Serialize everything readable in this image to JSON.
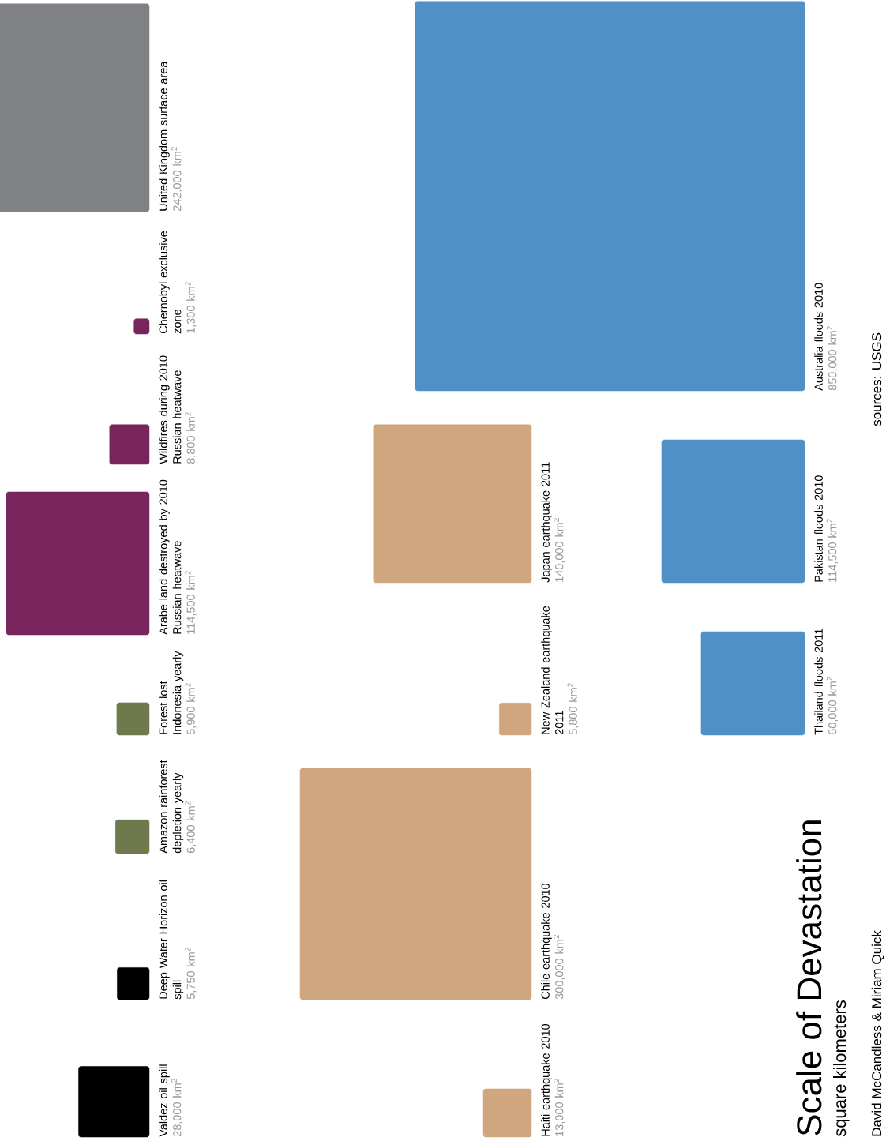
{
  "chart_data": {
    "type": "other",
    "title": "Scale of Devastation",
    "subtitle": "square kilometers",
    "categories": [
      "Valdez oil spill",
      "Deep Water Horizon oil spill",
      "Amazon rainforest depletion yearly",
      "Forest lost Indonesia yearly",
      "Arabe land destroyed by 2010 Russian heatwave",
      "Wildfires during 2010 Russian heatwave",
      "Chernobyl exclusive zone",
      "United Kingdom surface area",
      "Haiti earthquake 2010",
      "Chile earthquake 2010",
      "New Zealand earthquake 2011",
      "Japan earthquake 2011",
      "Thailand floods 2011",
      "Pakistan floods 2010",
      "Australia floods 2010"
    ],
    "values": [
      28000,
      5750,
      6400,
      5900,
      114500,
      8800,
      1300,
      242000,
      13000,
      300000,
      5800,
      140000,
      60000,
      114500,
      850000
    ],
    "value_labels": [
      "28,000 km$^{2}$",
      "5,750 km$^{2}$",
      "6,400 km$^{2}$",
      "5,900 km$^{2}$",
      "114,500 km$^{2}$",
      "8,800 km$^{2}$",
      "1,300 km$^{2}$",
      "242,000 km$^{2}$",
      "13,000 km$^{2}$",
      "300,000 km$^{2}$",
      "5,800 km$^{2}$",
      "140,000 km$^{2}$",
      "60,000 km$^{2}$",
      "114,500 km$^{2}$",
      "850,000 km$^{2}$"
    ],
    "colors": [
      "#000000",
      "#000000",
      "#6f7a4c",
      "#6f7a4c",
      "#78255e",
      "#78255e",
      "#78255e",
      "#808184",
      "#d0a67f",
      "#d0a67f",
      "#d0a67f",
      "#d0a67f",
      "#4f91c6",
      "#4f91c6",
      "#4f91c6"
    ],
    "annotations": [
      "David McCandless & Miriam Quick",
      "sources: USGS"
    ]
  }
}
